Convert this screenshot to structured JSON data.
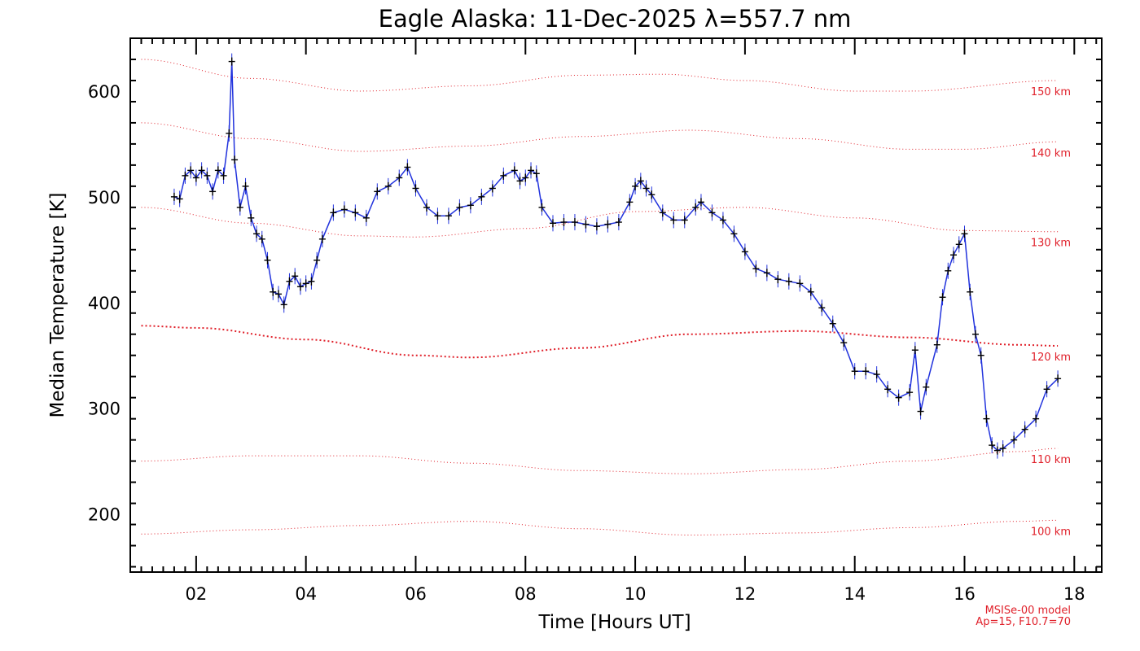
{
  "chart_data": {
    "type": "line",
    "title": "Eagle Alaska: 11-Dec-2025 λ=557.7 nm",
    "xlabel": "Time [Hours UT]",
    "ylabel": "Median Temperature [K]",
    "xlim": [
      0.8,
      18.5
    ],
    "ylim": [
      145,
      650
    ],
    "xticks": [
      2,
      4,
      6,
      8,
      10,
      12,
      14,
      16,
      18
    ],
    "xtick_labels": [
      "02",
      "04",
      "06",
      "08",
      "10",
      "12",
      "14",
      "16",
      "18"
    ],
    "yticks": [
      200,
      300,
      400,
      500,
      600
    ],
    "ytick_labels": [
      "200",
      "300",
      "400",
      "500",
      "600"
    ],
    "grid": false,
    "legend": "none",
    "colors": {
      "measurement": "#2233dd",
      "markers": "#000000",
      "model": "#e0202a"
    },
    "series": [
      {
        "style": "blue line with black plus markers and vertical error bars",
        "x": [
          1.6,
          1.7,
          1.8,
          1.9,
          2.0,
          2.1,
          2.2,
          2.3,
          2.4,
          2.5,
          2.6,
          2.65,
          2.7,
          2.8,
          2.9,
          3.0,
          3.1,
          3.2,
          3.3,
          3.4,
          3.5,
          3.6,
          3.7,
          3.8,
          3.9,
          4.0,
          4.1,
          4.2,
          4.3,
          4.5,
          4.7,
          4.9,
          5.1,
          5.3,
          5.5,
          5.7,
          5.85,
          6.0,
          6.2,
          6.4,
          6.6,
          6.8,
          7.0,
          7.2,
          7.4,
          7.6,
          7.8,
          7.9,
          8.0,
          8.1,
          8.2,
          8.3,
          8.5,
          8.7,
          8.9,
          9.1,
          9.3,
          9.5,
          9.7,
          9.9,
          10.0,
          10.1,
          10.2,
          10.3,
          10.5,
          10.7,
          10.9,
          11.1,
          11.2,
          11.4,
          11.6,
          11.8,
          12.0,
          12.2,
          12.4,
          12.6,
          12.8,
          13.0,
          13.2,
          13.4,
          13.6,
          13.8,
          14.0,
          14.2,
          14.4,
          14.6,
          14.8,
          15.0,
          15.1,
          15.2,
          15.3,
          15.5,
          15.6,
          15.7,
          15.8,
          15.9,
          16.0,
          16.1,
          16.2,
          16.3,
          16.4,
          16.5,
          16.6,
          16.7,
          16.9,
          17.1,
          17.3,
          17.5,
          17.7
        ],
        "y": [
          500,
          498,
          520,
          525,
          518,
          525,
          520,
          505,
          525,
          520,
          560,
          628,
          535,
          490,
          510,
          480,
          465,
          460,
          440,
          410,
          408,
          398,
          420,
          425,
          415,
          418,
          420,
          440,
          460,
          485,
          488,
          485,
          480,
          505,
          510,
          518,
          528,
          508,
          490,
          482,
          482,
          490,
          492,
          500,
          508,
          520,
          525,
          515,
          518,
          525,
          522,
          490,
          475,
          476,
          476,
          474,
          472,
          474,
          476,
          495,
          510,
          515,
          508,
          502,
          485,
          478,
          478,
          490,
          495,
          485,
          478,
          465,
          448,
          432,
          428,
          422,
          420,
          418,
          410,
          395,
          380,
          362,
          335,
          335,
          332,
          318,
          310,
          315,
          355,
          297,
          320,
          360,
          405,
          430,
          445,
          455,
          465,
          410,
          370,
          350,
          290,
          265,
          260,
          262,
          270,
          280,
          290,
          318,
          328
        ]
      }
    ],
    "model_curves": [
      {
        "label": "100 km",
        "x": [
          1,
          3,
          5,
          7,
          9,
          11,
          13,
          15,
          17,
          17.7
        ],
        "y": [
          181,
          185,
          189,
          193,
          186,
          180,
          182,
          187,
          193,
          194
        ]
      },
      {
        "label": "110 km",
        "x": [
          1,
          3,
          5,
          7,
          9,
          11,
          13,
          15,
          17,
          17.7
        ],
        "y": [
          250,
          255,
          255,
          248,
          241,
          238,
          242,
          250,
          259,
          262
        ]
      },
      {
        "label": "120 km",
        "x": [
          1,
          2,
          4,
          6,
          7,
          9,
          11,
          13,
          15,
          17,
          17.7
        ],
        "y": [
          378,
          376,
          365,
          350,
          348,
          357,
          370,
          373,
          367,
          360,
          359
        ]
      },
      {
        "label": "130 km",
        "x": [
          1,
          3,
          5,
          6,
          8,
          10,
          12,
          14,
          16,
          17.7
        ],
        "y": [
          490,
          475,
          463,
          462,
          470,
          486,
          490,
          480,
          468,
          467
        ]
      },
      {
        "label": "140 km",
        "x": [
          1,
          3,
          5,
          7,
          9,
          11,
          13,
          15,
          16,
          17.7
        ],
        "y": [
          570,
          555,
          543,
          548,
          557,
          563,
          555,
          545,
          545,
          552
        ]
      },
      {
        "label": "150 km",
        "x": [
          1,
          3,
          5,
          7,
          9,
          10.5,
          12,
          14,
          15,
          17.7
        ],
        "y": [
          630,
          612,
          600,
          605,
          615,
          616,
          610,
          600,
          600,
          610
        ]
      }
    ],
    "model_note": [
      "MSISe-00 model",
      "Ap=15, F10.7=70"
    ]
  }
}
